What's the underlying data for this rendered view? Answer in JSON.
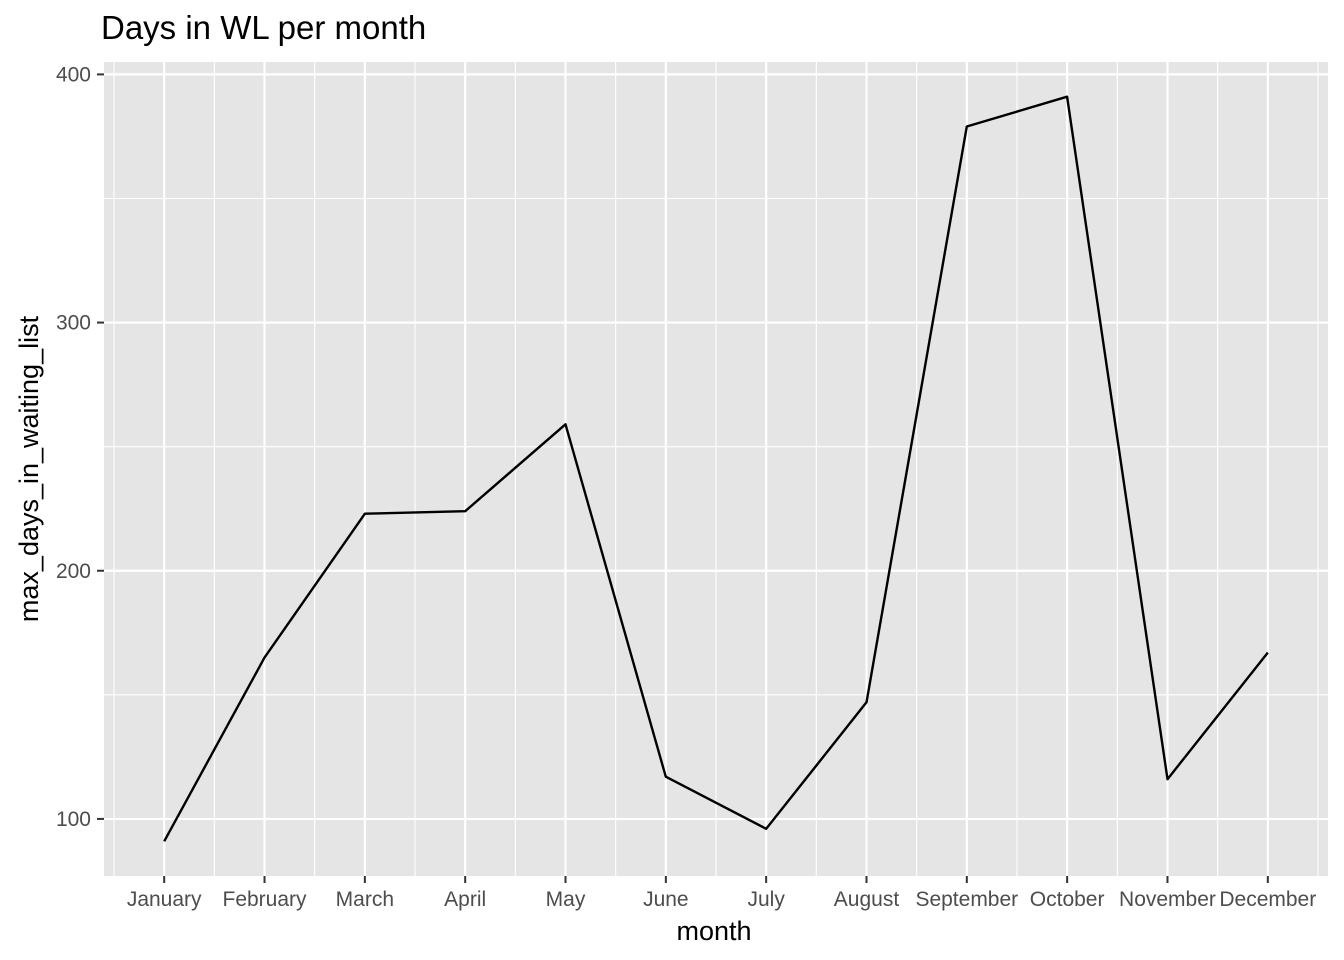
{
  "chart_data": {
    "type": "line",
    "title": "Days in WL per month",
    "xlabel": "month",
    "ylabel": "max_days_in_waiting_list",
    "categories": [
      "January",
      "February",
      "March",
      "April",
      "May",
      "June",
      "July",
      "August",
      "September",
      "October",
      "November",
      "December"
    ],
    "series": [
      {
        "values": [
          91,
          165,
          223,
          224,
          259,
          117,
          96,
          147,
          379,
          391,
          116,
          167
        ]
      }
    ],
    "y_ticks": [
      100,
      200,
      300,
      400
    ],
    "ylim": [
      77,
      405
    ],
    "grid": true,
    "panel_color": "#e5e5e5",
    "grid_color": "#ffffff",
    "line_color": "#000000"
  }
}
